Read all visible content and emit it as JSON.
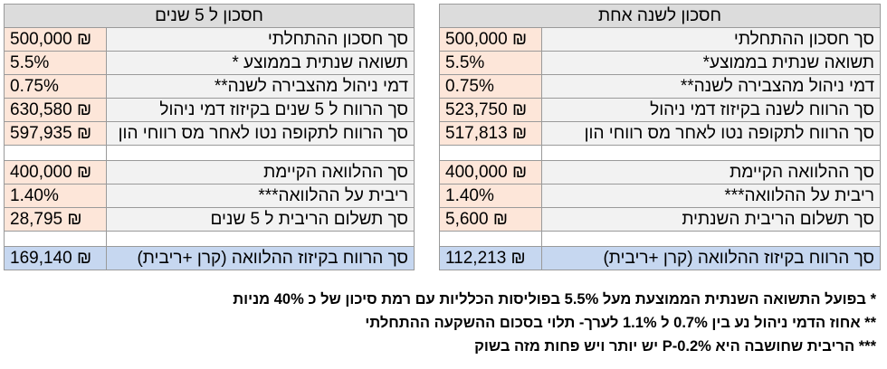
{
  "table_one_year": {
    "title": "חסכון לשנה אחת",
    "rows": [
      {
        "label": "סך חסכון ההתחלתי",
        "value": "500,000 ₪"
      },
      {
        "label": "תשואה שנתית בממוצע*",
        "value": "5.5%"
      },
      {
        "label": "דמי ניהול מהצבירה לשנה**",
        "value": "0.75%"
      },
      {
        "label": "סך הרווח לשנה בקיזוז דמי ניהול",
        "value": "523,750 ₪"
      },
      {
        "label": "סך הרווח לתקופה נטו לאחר מס רווחי הון",
        "value": "517,813 ₪"
      },
      {
        "label": "סך ההלוואה הקיימת",
        "value": "400,000 ₪"
      },
      {
        "label": "ריבית על ההלוואה***",
        "value": "1.40%"
      },
      {
        "label": "סך תשלום הריבית השנתית",
        "value": "5,600 ₪"
      }
    ],
    "total": {
      "label": "סך הרווח בקיזוז ההלוואה (קרן +ריבית)",
      "value": "112,213 ₪"
    }
  },
  "table_five_years": {
    "title": "חסכון ל 5 שנים",
    "rows": [
      {
        "label": "סך חסכון ההתחלתי",
        "value": "500,000 ₪"
      },
      {
        "label": "תשואה שנתית בממוצע *",
        "value": "5.5%"
      },
      {
        "label": "דמי ניהול מהצבירה לשנה**",
        "value": "0.75%"
      },
      {
        "label": "סך הרווח ל 5 שנים בקיזוז דמי ניהול",
        "value": "630,580 ₪"
      },
      {
        "label": "סך הרווח לתקופה נטו לאחר מס רווחי הון",
        "value": "597,935 ₪"
      },
      {
        "label": "סך ההלוואה הקיימת",
        "value": "400,000 ₪"
      },
      {
        "label": "ריבית על ההלוואה***",
        "value": "1.40%"
      },
      {
        "label": "סך תשלום הריבית ל 5 שנים",
        "value": "28,795 ₪"
      }
    ],
    "total": {
      "label": "סך הרווח בקיזוז ההלוואה (קרן +ריבית)",
      "value": "169,140 ₪"
    }
  },
  "notes": [
    "*  בפועל התשואה השנתית הממוצעת מעל 5.5% בפוליסות הכלליות עם רמת סיכון של כ 40% מניות",
    "** אחוז הדמי ניהול נע בין 0.7% ל 1.1% לערך- תלוי בסכום ההשקעה ההתחלתי",
    "*** הריבית שחושבה היא P-0.2% יש יותר ויש פחות מזה בשוק"
  ],
  "colors": {
    "header_bg": "#dcdcdc",
    "label_bg": "#f2f2f2",
    "value_bg": "#fde6d9",
    "total_bg": "#c6d7f0"
  }
}
